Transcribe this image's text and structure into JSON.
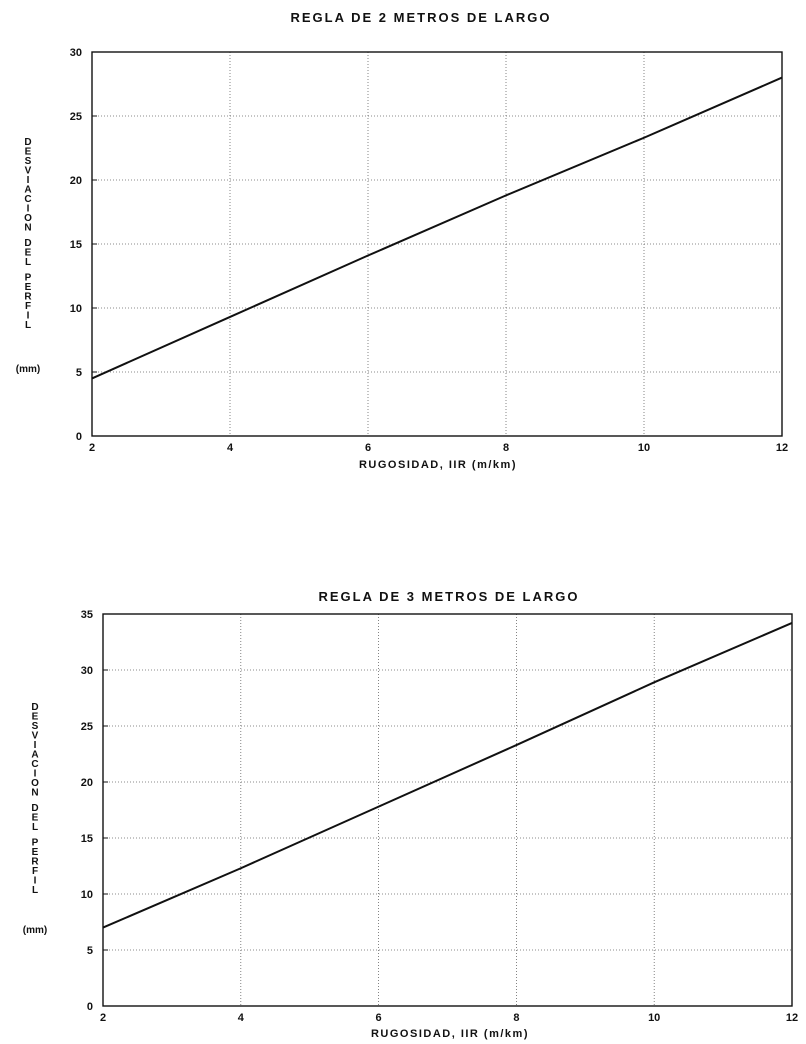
{
  "chart_data": [
    {
      "type": "line",
      "title": "REGLA DE 2 METROS DE LARGO",
      "xlabel": "RUGOSIDAD, IIR (m/km)",
      "ylabel": "DESVIACION DEL PERFIL",
      "yunit": "(mm)",
      "xlim": [
        2,
        12
      ],
      "ylim": [
        0,
        30
      ],
      "xticks": [
        2,
        4,
        6,
        8,
        10,
        12
      ],
      "yticks": [
        0,
        5,
        10,
        15,
        20,
        25,
        30
      ],
      "grid": true,
      "series": [
        {
          "x": [
            2,
            4,
            6,
            8,
            10,
            12
          ],
          "y": [
            4.5,
            9.3,
            14.1,
            18.8,
            23.3,
            28.0
          ]
        }
      ]
    },
    {
      "type": "line",
      "title": "REGLA DE 3 METROS DE LARGO",
      "xlabel": "RUGOSIDAD, IIR (m/km)",
      "ylabel": "DESVIACION DEL PERFIL",
      "yunit": "(mm)",
      "xlim": [
        2,
        12
      ],
      "ylim": [
        0,
        35
      ],
      "xticks": [
        2,
        4,
        6,
        8,
        10,
        12
      ],
      "yticks": [
        0,
        5,
        10,
        15,
        20,
        25,
        30,
        35
      ],
      "grid": true,
      "series": [
        {
          "x": [
            2,
            4,
            6,
            8,
            10,
            12
          ],
          "y": [
            7.0,
            12.3,
            17.8,
            23.3,
            28.9,
            34.2
          ]
        }
      ]
    }
  ]
}
